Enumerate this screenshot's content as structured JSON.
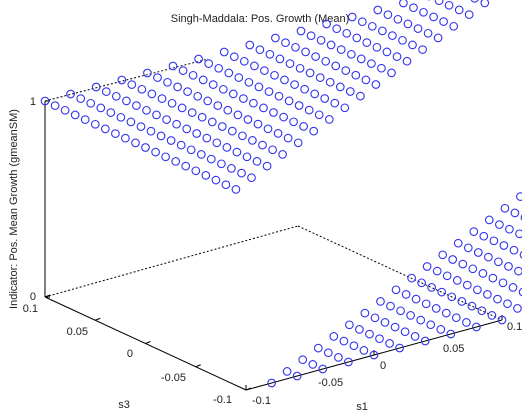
{
  "chart_data": {
    "type": "scatter3d",
    "title": "Singh-Maddala: Pos. Growth (Mean)",
    "xlabel": "s1",
    "ylabel": "s3",
    "zlabel": "Indicator: Pos. Mean Growth (gmeanSM)",
    "xlim": [
      -0.1,
      0.1
    ],
    "ylim": [
      -0.1,
      0.1
    ],
    "zlim": [
      0,
      1
    ],
    "xticks": [
      "-0.1",
      "-0.05",
      "0",
      "0.05",
      "0.1"
    ],
    "yticks": [
      "-0.1",
      "-0.05",
      "0",
      "0.05",
      "0.1"
    ],
    "zticks": [
      "0",
      "1"
    ],
    "grid_step": 0.01,
    "rule": "z = 1 where s3 > s1, z = 0 where s3 < s1 (points on the diagonal omitted)",
    "marker": "circle",
    "marker_color": "#3333ee",
    "grid": false
  }
}
